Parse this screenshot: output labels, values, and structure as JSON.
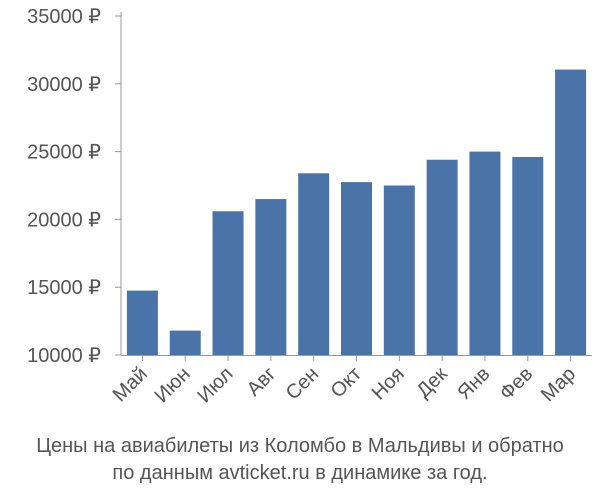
{
  "chart_data": {
    "type": "bar",
    "categories": [
      "Май",
      "Июн",
      "Июл",
      "Авг",
      "Сен",
      "Окт",
      "Ноя",
      "Дек",
      "Янв",
      "Фев",
      "Мар"
    ],
    "values": [
      14750,
      11800,
      20600,
      21500,
      23400,
      22750,
      22500,
      24400,
      25000,
      24600,
      31050
    ],
    "ylim": [
      10000,
      35000
    ],
    "yticks": [
      "35000 ₽",
      "30000 ₽",
      "25000 ₽",
      "20000 ₽",
      "15000 ₽",
      "10000 ₽"
    ],
    "ytick_values": [
      35000,
      30000,
      25000,
      20000,
      15000,
      10000
    ],
    "bar_color": "#4a74a7",
    "axis_color": "#999999",
    "grid": false
  },
  "caption": {
    "line1": "Цены на авиабилеты из Коломбо в Мальдивы и обратно",
    "line2": "по данным avticket.ru в динамике за год."
  }
}
